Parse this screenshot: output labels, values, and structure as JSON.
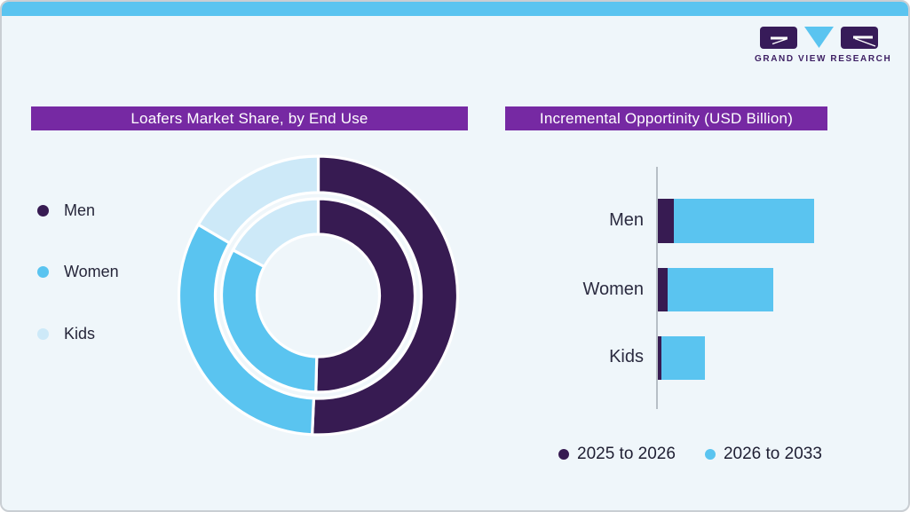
{
  "frame": {
    "top_bar_color": "#5ac4f0",
    "background_color": "#eff6fa",
    "border_color": "#c9ced3"
  },
  "logo": {
    "text": "GRAND VIEW RESEARCH",
    "box_color": "#371b59",
    "triangle_color": "#5ac4f0"
  },
  "left_panel": {
    "title": "Loafers Market Share, by End Use",
    "title_bg": "#7629a3",
    "legend": [
      {
        "label": "Men",
        "color": "#371b52"
      },
      {
        "label": "Women",
        "color": "#5ac4f0"
      },
      {
        "label": "Kids",
        "color": "#cde9f8"
      }
    ]
  },
  "right_panel": {
    "title": "Incremental Opportinity (USD Billion)",
    "title_bg": "#7629a3",
    "legend": [
      {
        "label": "2025 to 2026",
        "color": "#371b52"
      },
      {
        "label": "2026 to 2033",
        "color": "#5ac4f0"
      }
    ]
  },
  "chart_data": [
    {
      "type": "pie",
      "subtype": "double-ring-donut",
      "title": "Loafers Market Share, by End Use",
      "categories": [
        "Men",
        "Women",
        "Kids"
      ],
      "colors": [
        "#371b52",
        "#5ac4f0",
        "#cde9f8"
      ],
      "units": "percent share, estimated from arc angles (no data labels shown)",
      "rings": [
        {
          "name": "inner",
          "values": [
            50.4,
            32.4,
            17.2
          ]
        },
        {
          "name": "outer",
          "values": [
            50.7,
            32.8,
            16.5
          ]
        }
      ],
      "legend_position": "left",
      "start_angle": "12 o'clock, clockwise"
    },
    {
      "type": "bar",
      "orientation": "horizontal",
      "stacked": true,
      "title": "Incremental Opportinity (USD Billion)",
      "categories": [
        "Men",
        "Women",
        "Kids"
      ],
      "series": [
        {
          "name": "2025 to 2026",
          "color": "#371b52",
          "values": [
            0.1,
            0.06,
            0.02
          ]
        },
        {
          "name": "2026 to 2033",
          "color": "#5ac4f0",
          "values": [
            0.9,
            0.68,
            0.28
          ]
        }
      ],
      "units": "relative units, axis unlabeled in image",
      "legend_position": "bottom",
      "grid": false
    }
  ]
}
